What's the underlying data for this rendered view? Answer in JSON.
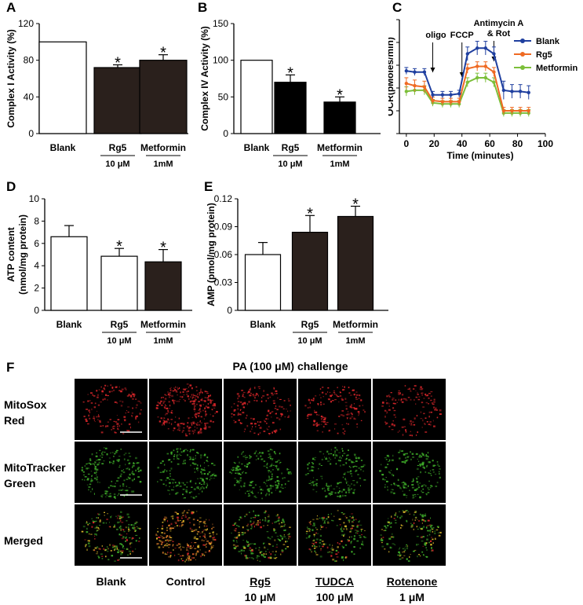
{
  "chart_data": [
    {
      "panel": "A",
      "type": "bar",
      "ylabel": "Complex I Activity (%)",
      "ylim": [
        0,
        120
      ],
      "yticks": [
        "0",
        "40",
        "80",
        "120"
      ],
      "categories": [
        "Blank",
        "Rg5",
        "Metformin"
      ],
      "sublabels": [
        "",
        "10 μM",
        "1mM"
      ],
      "values": [
        100,
        72,
        80
      ],
      "errors": [
        0,
        3,
        6
      ],
      "significant": [
        false,
        true,
        true
      ],
      "fills": [
        "#ffffff",
        "#2a201c",
        "#2a201c"
      ]
    },
    {
      "panel": "B",
      "type": "bar",
      "ylabel": "Complex IV Activity (%)",
      "ylim": [
        0,
        150
      ],
      "yticks": [
        "0",
        "50",
        "100",
        "150"
      ],
      "categories": [
        "Blank",
        "Rg5",
        "Metformin"
      ],
      "sublabels": [
        "",
        "10 μM",
        "1mM"
      ],
      "values": [
        100,
        70,
        43
      ],
      "errors": [
        0,
        10,
        7
      ],
      "significant": [
        false,
        true,
        true
      ],
      "fills": [
        "#ffffff",
        "#000000",
        "#000000"
      ]
    },
    {
      "panel": "C",
      "type": "line",
      "xlabel": "Time (minutes)",
      "ylabel": "OCR(pMoles/min)",
      "xlim": [
        -5,
        100
      ],
      "ylim": [
        0,
        100
      ],
      "xticks": [
        "0",
        "20",
        "40",
        "60",
        "80",
        "100"
      ],
      "yticks": [
        "0",
        "20",
        "40",
        "60",
        "80",
        "100"
      ],
      "annotations": [
        {
          "text": "oligo",
          "x": 19
        },
        {
          "text": "FCCP",
          "x": 40
        },
        {
          "text": "Antimycin A",
          "x": 63
        },
        {
          "text": "& Rot",
          "x": 63
        }
      ],
      "x": [
        0,
        6,
        13,
        19,
        26,
        32,
        38,
        44,
        51,
        57,
        63,
        70,
        76,
        82,
        88
      ],
      "series": [
        {
          "name": "Blank",
          "color": "#1f3f9f",
          "values": [
            55,
            54,
            54,
            34,
            34,
            34,
            35,
            70,
            75,
            75,
            70,
            38,
            37,
            37,
            36
          ],
          "errors": [
            3,
            3,
            3,
            3,
            3,
            3,
            3,
            6,
            6,
            6,
            6,
            8,
            6,
            6,
            6
          ]
        },
        {
          "name": "Rg5",
          "color": "#ef6a23",
          "values": [
            44,
            42,
            41,
            29,
            28,
            28,
            28,
            57,
            59,
            59,
            54,
            20,
            20,
            20,
            20
          ],
          "errors": [
            5,
            5,
            5,
            3,
            3,
            3,
            3,
            4,
            4,
            4,
            4,
            3,
            3,
            3,
            3
          ]
        },
        {
          "name": "Metformin",
          "color": "#7cbf3a",
          "values": [
            37,
            38,
            38,
            27,
            26,
            26,
            26,
            45,
            49,
            49,
            45,
            18,
            18,
            18,
            18
          ],
          "errors": [
            4,
            4,
            4,
            3,
            3,
            3,
            3,
            4,
            4,
            4,
            4,
            3,
            3,
            3,
            3
          ]
        }
      ]
    },
    {
      "panel": "D",
      "type": "bar",
      "ylabel": "ATP content (nmol/mg protein)",
      "ylabel_lines": [
        "ATP content",
        "(nmol/mg protein)"
      ],
      "ylim": [
        0,
        10
      ],
      "yticks": [
        "0",
        "2",
        "4",
        "6",
        "8",
        "10"
      ],
      "categories": [
        "Blank",
        "Rg5",
        "Metformin"
      ],
      "sublabels": [
        "",
        "10 μM",
        "1mM"
      ],
      "values": [
        6.6,
        4.85,
        4.35
      ],
      "errors": [
        1.0,
        0.7,
        1.1
      ],
      "significant": [
        false,
        true,
        true
      ],
      "fills": [
        "#ffffff",
        "#ffffff",
        "#2a201c"
      ]
    },
    {
      "panel": "E",
      "type": "bar",
      "ylabel": "AMP (pmol/mg protein)",
      "ylim": [
        0,
        0.12
      ],
      "yticks": [
        "0",
        "0.03",
        "0.06",
        "0.09",
        "0.12"
      ],
      "categories": [
        "Blank",
        "Rg5",
        "Metformin"
      ],
      "sublabels": [
        "",
        "10 μM",
        "1mM"
      ],
      "values": [
        0.06,
        0.084,
        0.101
      ],
      "errors": [
        0.013,
        0.018,
        0.011
      ],
      "significant": [
        false,
        true,
        true
      ],
      "fills": [
        "#ffffff",
        "#2a201c",
        "#2a201c"
      ]
    }
  ],
  "panel_letters": {
    "A": "A",
    "B": "B",
    "C": "C",
    "D": "D",
    "E": "E",
    "F": "F"
  },
  "asterisk": "*",
  "microscopy": {
    "title": "PA (100 μM) challenge",
    "rows": [
      {
        "line1": "MitoSox",
        "line2": "Red",
        "kind": "red"
      },
      {
        "line1": "MitoTracker",
        "line2": "Green",
        "kind": "green"
      },
      {
        "line1": "Merged",
        "line2": "",
        "kind": "merged"
      }
    ],
    "columns": [
      {
        "line1": "Blank",
        "line2": ""
      },
      {
        "line1": "Control",
        "line2": ""
      },
      {
        "line1": "Rg5",
        "line2": "10 μM"
      },
      {
        "line1": "TUDCA",
        "line2": "100 μM"
      },
      {
        "line1": "Rotenone",
        "line2": "1 μM"
      }
    ],
    "colors": {
      "red": "#d8262a",
      "green": "#3fae2a",
      "yellow": "#d9b62a",
      "orange": "#e0802a"
    }
  }
}
